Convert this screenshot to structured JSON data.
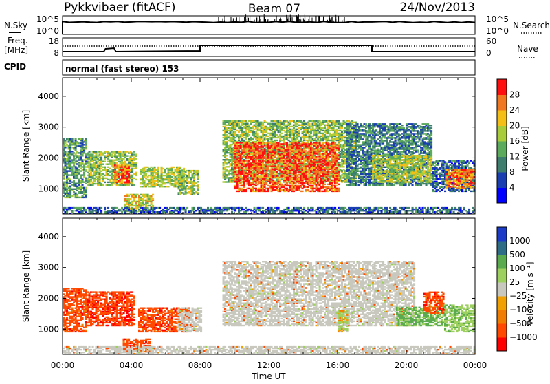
{
  "header": {
    "station": "Pykkvibaer (fitACF)",
    "beam": "Beam 07",
    "date": "24/Nov/2013"
  },
  "nsky_panel": {
    "left_label": "N.Sky",
    "right_label": "N.Search",
    "left_ticks": [
      "10^5",
      "10^0"
    ],
    "right_ticks": [
      "10^5",
      "10^0"
    ]
  },
  "freq_panel": {
    "left_label_1": "Freq.",
    "left_label_2": "[MHz]",
    "left_ticks": [
      "18",
      "8"
    ],
    "right_ticks": [
      "60",
      "0"
    ],
    "right_label": "Nave"
  },
  "cpid_panel": {
    "label": "CPID",
    "text": "normal (fast stereo) 153"
  },
  "chart_data": [
    {
      "type": "heatmap",
      "title": "",
      "ylabel": "Slant Range [km]",
      "ylim": [
        180,
        4600
      ],
      "yticks": [
        "4000",
        "3000",
        "2000",
        "1000"
      ],
      "x_range_hours": [
        0,
        24
      ],
      "colorbar": {
        "label": "Power [dB]",
        "ticks": [
          "28",
          "24",
          "20",
          "16",
          "12",
          "8",
          "4"
        ],
        "colors": [
          "#0000ff",
          "#1a3fb0",
          "#3d7e6e",
          "#5caa5c",
          "#a8cc3a",
          "#f4c018",
          "#f07820",
          "#ff1010"
        ]
      },
      "regions": [
        {
          "t0": 0.0,
          "t1": 1.4,
          "r0": 700,
          "r1": 2600,
          "level": 12
        },
        {
          "t0": 1.4,
          "t1": 4.3,
          "r0": 1100,
          "r1": 2200,
          "level": 16
        },
        {
          "t0": 3.0,
          "t1": 3.9,
          "r0": 1150,
          "r1": 1750,
          "level": 26
        },
        {
          "t0": 4.5,
          "t1": 7.0,
          "r0": 1050,
          "r1": 1700,
          "level": 18
        },
        {
          "t0": 6.7,
          "t1": 7.8,
          "r0": 800,
          "r1": 1600,
          "level": 16
        },
        {
          "t0": 3.6,
          "t1": 5.2,
          "r0": 250,
          "r1": 800,
          "level": 20
        },
        {
          "t0": 9.3,
          "t1": 17.0,
          "r0": 1200,
          "r1": 3200,
          "level": 16
        },
        {
          "t0": 10.0,
          "t1": 16.0,
          "r0": 900,
          "r1": 2500,
          "level": 28
        },
        {
          "t0": 16.5,
          "t1": 21.5,
          "r0": 1100,
          "r1": 3100,
          "level": 10
        },
        {
          "t0": 18.0,
          "t1": 21.5,
          "r0": 1200,
          "r1": 2100,
          "level": 18
        },
        {
          "t0": 21.5,
          "t1": 24.0,
          "r0": 900,
          "r1": 1900,
          "level": 8
        },
        {
          "t0": 22.3,
          "t1": 24.0,
          "r0": 1000,
          "r1": 1600,
          "level": 26
        },
        {
          "t0": 0.0,
          "t1": 24.0,
          "r0": 180,
          "r1": 400,
          "level": 8
        }
      ]
    },
    {
      "type": "heatmap",
      "title": "",
      "ylabel": "Slant Range [km]",
      "ylim": [
        180,
        4600
      ],
      "yticks": [
        "4000",
        "3000",
        "2000",
        "1000"
      ],
      "x_range_hours": [
        0,
        24
      ],
      "xticks": [
        "00:00",
        "04:00",
        "08:00",
        "12:00",
        "16:00",
        "20:00",
        "00:00"
      ],
      "xlabel": "Time UT",
      "colorbar": {
        "label": "Velocity [m s⁻¹]",
        "ticks": [
          "1000",
          "500",
          "100",
          "25",
          "−25",
          "−100",
          "−500",
          "−1000"
        ],
        "colors": [
          "#ff0000",
          "#ff4800",
          "#f07d00",
          "#f0a000",
          "#c8c8be",
          "#9ed060",
          "#5aaa4e",
          "#2d6e86",
          "#1c3cc8"
        ]
      },
      "regions": [
        {
          "t0": 0.0,
          "t1": 1.4,
          "r0": 900,
          "r1": 2300,
          "velocity": -300
        },
        {
          "t0": 1.4,
          "t1": 4.2,
          "r0": 1100,
          "r1": 2200,
          "velocity": -400
        },
        {
          "t0": 4.4,
          "t1": 7.3,
          "r0": 900,
          "r1": 1700,
          "velocity": -300
        },
        {
          "t0": 6.7,
          "t1": 8.0,
          "r0": 900,
          "r1": 1700,
          "velocity": 0
        },
        {
          "t0": 3.5,
          "t1": 5.0,
          "r0": 250,
          "r1": 700,
          "velocity": -300
        },
        {
          "t0": 9.3,
          "t1": 20.5,
          "r0": 1100,
          "r1": 3200,
          "velocity": 0
        },
        {
          "t0": 16.0,
          "t1": 16.6,
          "r0": 900,
          "r1": 1600,
          "velocity": 150
        },
        {
          "t0": 19.4,
          "t1": 22.3,
          "r0": 1100,
          "r1": 1700,
          "velocity": 600
        },
        {
          "t0": 21.0,
          "t1": 22.2,
          "r0": 1500,
          "r1": 2200,
          "velocity": -300
        },
        {
          "t0": 22.2,
          "t1": 24.0,
          "r0": 900,
          "r1": 1800,
          "velocity": 400
        },
        {
          "t0": 0.0,
          "t1": 24.0,
          "r0": 180,
          "r1": 450,
          "velocity": 0
        }
      ]
    }
  ]
}
